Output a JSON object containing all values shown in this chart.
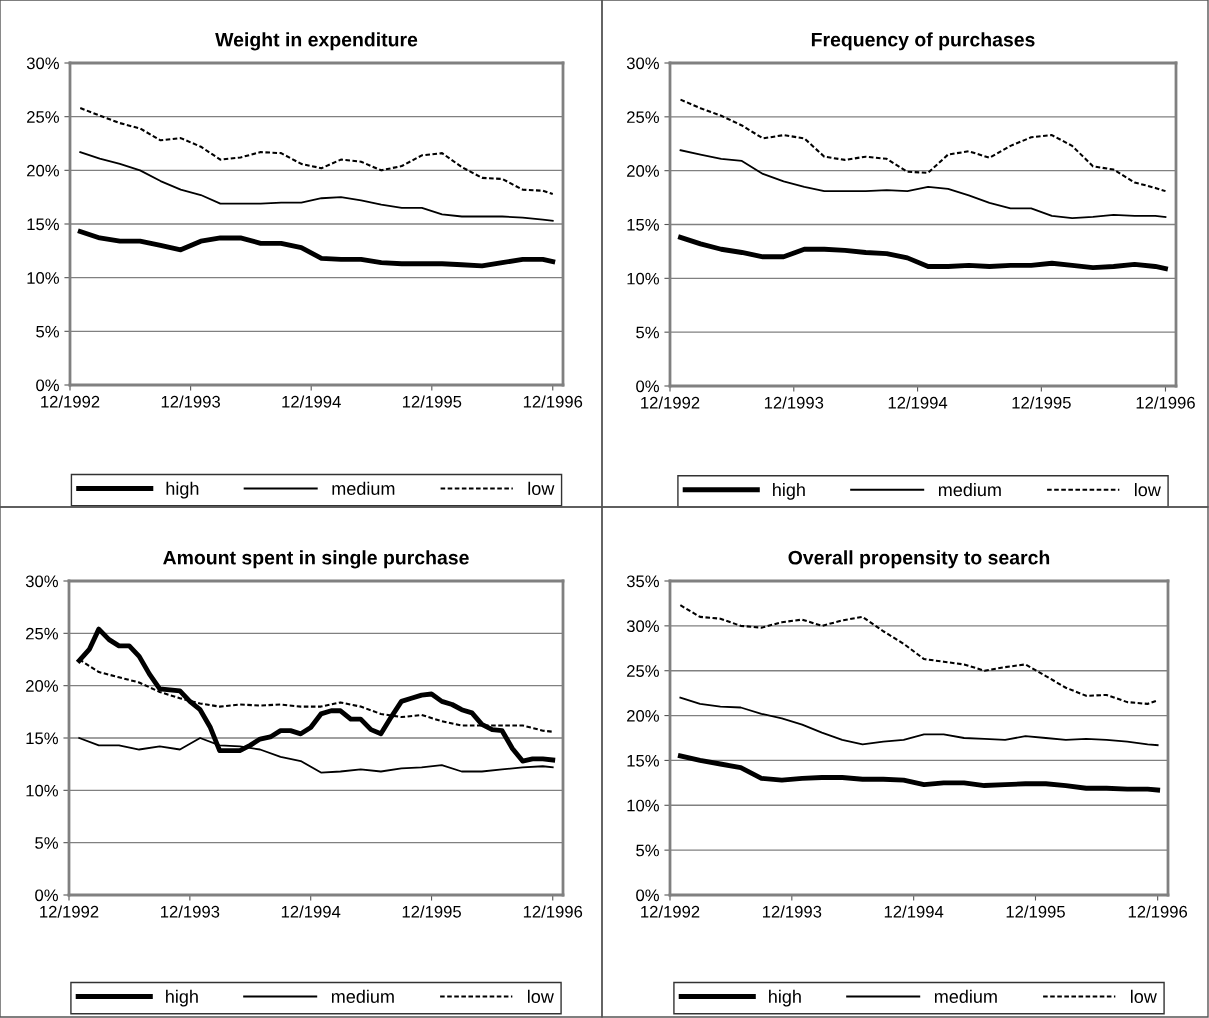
{
  "chart_data": [
    {
      "type": "line",
      "title": "Weight in expenditure",
      "x": [
        "1993-01",
        "1993-03",
        "1993-05",
        "1993-07",
        "1993-09",
        "1993-11",
        "1994-01",
        "1994-03",
        "1994-05",
        "1994-07",
        "1994-09",
        "1994-11",
        "1995-01",
        "1995-03",
        "1995-05",
        "1995-07",
        "1995-09",
        "1995-11",
        "1996-01",
        "1996-03",
        "1996-05",
        "1996-07",
        "1996-09",
        "1996-11",
        "1996-12"
      ],
      "series": [
        {
          "name": "high",
          "color": "#000000",
          "line_style": "solid",
          "values": [
            14.3,
            13.7,
            13.4,
            13.4,
            13.0,
            12.6,
            13.4,
            13.7,
            13.7,
            13.2,
            13.2,
            12.8,
            11.8,
            11.7,
            11.7,
            11.4,
            11.3,
            11.3,
            11.3,
            11.2,
            11.1,
            11.4,
            11.7,
            11.7,
            11.5
          ]
        },
        {
          "name": "medium",
          "color": "#000000",
          "line_style": "solid",
          "values": [
            21.7,
            21.1,
            20.6,
            20.0,
            19.0,
            18.2,
            17.7,
            16.9,
            16.9,
            16.9,
            17.0,
            17.0,
            17.4,
            17.5,
            17.2,
            16.8,
            16.5,
            16.5,
            15.9,
            15.7,
            15.7,
            15.7,
            15.6,
            15.4,
            15.3
          ]
        },
        {
          "name": "low",
          "color": "#000000",
          "line_style": "dashed",
          "values": [
            25.8,
            25.1,
            24.4,
            23.9,
            22.8,
            23.0,
            22.2,
            21.0,
            21.2,
            21.7,
            21.6,
            20.6,
            20.2,
            21.0,
            20.8,
            20.0,
            20.4,
            21.4,
            21.6,
            20.3,
            19.3,
            19.2,
            18.2,
            18.1,
            17.8
          ]
        }
      ],
      "xlim": [
        "1992-12",
        "1997-01"
      ],
      "xticks": [
        {
          "value": "1992-12",
          "label": "12/1992"
        },
        {
          "value": "1993-12",
          "label": "12/1993"
        },
        {
          "value": "1994-12",
          "label": "12/1994"
        },
        {
          "value": "1995-12",
          "label": "12/1995"
        },
        {
          "value": "1996-12",
          "label": "12/1996"
        }
      ],
      "ylim": [
        0,
        30
      ],
      "yticks": [
        {
          "value": 0,
          "label": "0%"
        },
        {
          "value": 5,
          "label": "5%"
        },
        {
          "value": 10,
          "label": "10%"
        },
        {
          "value": 15,
          "label": "15%"
        },
        {
          "value": 20,
          "label": "20%"
        },
        {
          "value": 25,
          "label": "25%"
        },
        {
          "value": 30,
          "label": "30%"
        }
      ],
      "grid": "y",
      "legend": "bottom",
      "marker": "none"
    },
    {
      "type": "line",
      "title": "Frequency of purchases",
      "x": [
        "1993-01",
        "1993-03",
        "1993-05",
        "1993-07",
        "1993-09",
        "1993-11",
        "1994-01",
        "1994-03",
        "1994-05",
        "1994-07",
        "1994-09",
        "1994-11",
        "1995-01",
        "1995-03",
        "1995-05",
        "1995-07",
        "1995-09",
        "1995-11",
        "1996-01",
        "1996-03",
        "1996-05",
        "1996-07",
        "1996-09",
        "1996-11",
        "1996-12"
      ],
      "series": [
        {
          "name": "high",
          "color": "#000000",
          "line_style": "solid",
          "values": [
            13.8,
            13.2,
            12.7,
            12.4,
            12.0,
            12.0,
            12.7,
            12.7,
            12.6,
            12.4,
            12.3,
            11.9,
            11.1,
            11.1,
            11.2,
            11.1,
            11.2,
            11.2,
            11.4,
            11.2,
            11.0,
            11.1,
            11.3,
            11.1,
            10.9
          ]
        },
        {
          "name": "medium",
          "color": "#000000",
          "line_style": "solid",
          "values": [
            21.9,
            21.5,
            21.1,
            20.9,
            19.7,
            19.0,
            18.5,
            18.1,
            18.1,
            18.1,
            18.2,
            18.1,
            18.5,
            18.3,
            17.7,
            17.0,
            16.5,
            16.5,
            15.8,
            15.6,
            15.7,
            15.9,
            15.8,
            15.8,
            15.7
          ]
        },
        {
          "name": "low",
          "color": "#000000",
          "line_style": "dashed",
          "values": [
            26.6,
            25.8,
            25.1,
            24.2,
            23.0,
            23.3,
            23.0,
            21.3,
            21.0,
            21.3,
            21.1,
            19.9,
            19.8,
            21.5,
            21.8,
            21.2,
            22.3,
            23.1,
            23.3,
            22.3,
            20.4,
            20.1,
            18.9,
            18.4,
            18.1
          ]
        }
      ],
      "xlim": [
        "1992-12",
        "1997-01"
      ],
      "xticks": [
        {
          "value": "1992-12",
          "label": "12/1992"
        },
        {
          "value": "1993-12",
          "label": "12/1993"
        },
        {
          "value": "1994-12",
          "label": "12/1994"
        },
        {
          "value": "1995-12",
          "label": "12/1995"
        },
        {
          "value": "1996-12",
          "label": "12/1996"
        }
      ],
      "ylim": [
        0,
        30
      ],
      "yticks": [
        {
          "value": 0,
          "label": "0%"
        },
        {
          "value": 5,
          "label": "5%"
        },
        {
          "value": 10,
          "label": "10%"
        },
        {
          "value": 15,
          "label": "15%"
        },
        {
          "value": 20,
          "label": "20%"
        },
        {
          "value": 25,
          "label": "25%"
        },
        {
          "value": 30,
          "label": "30%"
        }
      ],
      "grid": "y",
      "legend": "bottom",
      "marker": "none"
    },
    {
      "type": "line",
      "title": "Amount spent in single purchase",
      "x": [
        "1993-01",
        "1993-03",
        "1993-05",
        "1993-07",
        "1993-09",
        "1993-11",
        "1994-01",
        "1994-03",
        "1994-05",
        "1994-07",
        "1994-09",
        "1994-11",
        "1995-01",
        "1995-03",
        "1995-05",
        "1995-07",
        "1995-09",
        "1995-11",
        "1996-01",
        "1996-03",
        "1996-05",
        "1996-07",
        "1996-09",
        "1996-11",
        "1996-12"
      ],
      "series": [
        {
          "name": "high",
          "color": "#000000",
          "line_style": "solid",
          "x": [
            "1993-01",
            "1993-02",
            "1993-03",
            "1993-04",
            "1993-05",
            "1993-06",
            "1993-07",
            "1993-08",
            "1993-09",
            "1993-10",
            "1993-11",
            "1993-12",
            "1994-01",
            "1994-02",
            "1994-03",
            "1994-04",
            "1994-05",
            "1994-06",
            "1994-07",
            "1994-08",
            "1994-09",
            "1994-10",
            "1994-11",
            "1994-12",
            "1995-01",
            "1995-02",
            "1995-03",
            "1995-04",
            "1995-05",
            "1995-06",
            "1995-07",
            "1995-08",
            "1995-09",
            "1995-10",
            "1995-11",
            "1995-12",
            "1996-01",
            "1996-02",
            "1996-03",
            "1996-04",
            "1996-05",
            "1996-06",
            "1996-07",
            "1996-08",
            "1996-09",
            "1996-10",
            "1996-11",
            "1996-12"
          ],
          "values": [
            22.4,
            23.5,
            25.4,
            24.4,
            23.8,
            23.8,
            22.8,
            21.1,
            19.7,
            19.6,
            19.5,
            18.5,
            17.7,
            16.0,
            13.8,
            13.8,
            13.8,
            14.3,
            14.9,
            15.1,
            15.7,
            15.7,
            15.4,
            16.0,
            17.3,
            17.6,
            17.6,
            16.8,
            16.8,
            15.8,
            15.4,
            17.0,
            18.5,
            18.8,
            19.1,
            19.2,
            18.5,
            18.2,
            17.7,
            17.4,
            16.3,
            15.8,
            15.7,
            14.0,
            12.8,
            13.0,
            13.0,
            12.9
          ]
        },
        {
          "name": "medium",
          "color": "#000000",
          "line_style": "solid",
          "values": [
            15.0,
            14.3,
            14.3,
            13.9,
            14.2,
            13.9,
            15.0,
            14.3,
            14.2,
            13.9,
            13.2,
            12.8,
            11.7,
            11.8,
            12.0,
            11.8,
            12.1,
            12.2,
            12.4,
            11.8,
            11.8,
            12.0,
            12.2,
            12.3,
            12.2
          ]
        },
        {
          "name": "low",
          "color": "#000000",
          "line_style": "dashed",
          "values": [
            22.5,
            21.3,
            20.8,
            20.3,
            19.4,
            18.8,
            18.3,
            18.0,
            18.2,
            18.1,
            18.2,
            18.0,
            18.0,
            18.4,
            18.0,
            17.3,
            17.0,
            17.2,
            16.6,
            16.2,
            16.2,
            16.2,
            16.2,
            15.7,
            15.6
          ]
        }
      ],
      "xlim": [
        "1992-12",
        "1997-01"
      ],
      "xticks": [
        {
          "value": "1992-12",
          "label": "12/1992"
        },
        {
          "value": "1993-12",
          "label": "12/1993"
        },
        {
          "value": "1994-12",
          "label": "12/1994"
        },
        {
          "value": "1995-12",
          "label": "12/1995"
        },
        {
          "value": "1996-12",
          "label": "12/1996"
        }
      ],
      "ylim": [
        0,
        30
      ],
      "yticks": [
        {
          "value": 0,
          "label": "0%"
        },
        {
          "value": 5,
          "label": "5%"
        },
        {
          "value": 10,
          "label": "10%"
        },
        {
          "value": 15,
          "label": "15%"
        },
        {
          "value": 20,
          "label": "20%"
        },
        {
          "value": 25,
          "label": "25%"
        },
        {
          "value": 30,
          "label": "30%"
        }
      ],
      "grid": "y",
      "legend": "bottom",
      "marker": "none"
    },
    {
      "type": "line",
      "title": "Overall propensity to search",
      "x": [
        "1993-01",
        "1993-03",
        "1993-05",
        "1993-07",
        "1993-09",
        "1993-11",
        "1994-01",
        "1994-03",
        "1994-05",
        "1994-07",
        "1994-09",
        "1994-11",
        "1995-01",
        "1995-03",
        "1995-05",
        "1995-07",
        "1995-09",
        "1995-11",
        "1996-01",
        "1996-03",
        "1996-05",
        "1996-07",
        "1996-09",
        "1996-11",
        "1996-12"
      ],
      "series": [
        {
          "name": "high",
          "color": "#000000",
          "line_style": "solid",
          "values": [
            15.5,
            15.0,
            14.6,
            14.2,
            13.0,
            12.8,
            13.0,
            13.1,
            13.1,
            12.9,
            12.9,
            12.8,
            12.3,
            12.5,
            12.5,
            12.2,
            12.3,
            12.4,
            12.4,
            12.2,
            11.9,
            11.9,
            11.8,
            11.8,
            11.7
          ]
        },
        {
          "name": "medium",
          "color": "#000000",
          "line_style": "solid",
          "values": [
            22.0,
            21.3,
            21.0,
            20.9,
            20.2,
            19.7,
            19.0,
            18.1,
            17.3,
            16.8,
            17.1,
            17.3,
            17.9,
            17.9,
            17.5,
            17.4,
            17.3,
            17.7,
            17.5,
            17.3,
            17.4,
            17.3,
            17.1,
            16.8,
            16.7
          ]
        },
        {
          "name": "low",
          "color": "#000000",
          "line_style": "dashed",
          "values": [
            32.3,
            31.0,
            30.8,
            30.0,
            29.8,
            30.4,
            30.7,
            30.0,
            30.6,
            31.0,
            29.4,
            28.0,
            26.3,
            26.0,
            25.7,
            25.0,
            25.4,
            25.7,
            24.4,
            23.1,
            22.2,
            22.3,
            21.5,
            21.3,
            21.7
          ]
        }
      ],
      "xlim": [
        "1992-12",
        "1997-01"
      ],
      "xticks": [
        {
          "value": "1992-12",
          "label": "12/1992"
        },
        {
          "value": "1993-12",
          "label": "12/1993"
        },
        {
          "value": "1994-12",
          "label": "12/1994"
        },
        {
          "value": "1995-12",
          "label": "12/1995"
        },
        {
          "value": "1996-12",
          "label": "12/1996"
        }
      ],
      "ylim": [
        0,
        35
      ],
      "yticks": [
        {
          "value": 0,
          "label": "0%"
        },
        {
          "value": 5,
          "label": "5%"
        },
        {
          "value": 10,
          "label": "10%"
        },
        {
          "value": 15,
          "label": "15%"
        },
        {
          "value": 20,
          "label": "20%"
        },
        {
          "value": 25,
          "label": "25%"
        },
        {
          "value": 30,
          "label": "30%"
        },
        {
          "value": 35,
          "label": "35%"
        }
      ],
      "grid": "y",
      "legend": "bottom",
      "marker": "none"
    }
  ]
}
